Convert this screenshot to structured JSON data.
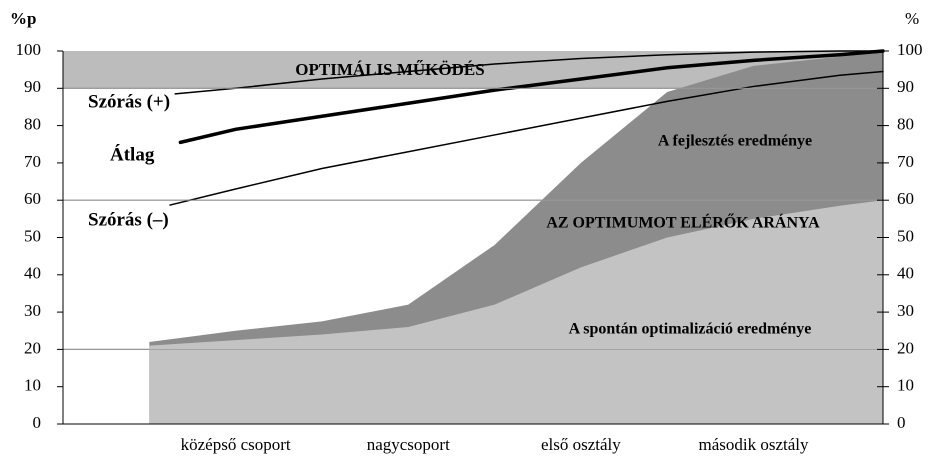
{
  "chart_data": {
    "type": "area",
    "ylabel": "%p",
    "y2label": "%",
    "xlim": [
      0,
      4.75
    ],
    "xticks": [
      {
        "value": 1,
        "label": "középső csoport"
      },
      {
        "value": 2,
        "label": "nagycsoport"
      },
      {
        "value": 3,
        "label": "első  osztály"
      },
      {
        "value": 4,
        "label": "második osztály"
      }
    ],
    "ylim": [
      0,
      100
    ],
    "yticks": [
      0,
      10,
      20,
      30,
      40,
      50,
      60,
      70,
      80,
      90,
      100
    ],
    "y2lim": [
      0,
      100
    ],
    "y2ticks": [
      0,
      10,
      20,
      30,
      40,
      50,
      60,
      70,
      80,
      90,
      100
    ],
    "gridlines": [
      20,
      60,
      90
    ],
    "band": {
      "label": "OPTIMÁLIS  MŰKÖDÉS",
      "range": [
        90,
        100
      ],
      "color": "#bcbcbc"
    },
    "series": [
      {
        "name": "A fejlesztés eredménye",
        "kind": "area",
        "color": "#8c8c8c",
        "x": [
          0.5,
          1,
          1.5,
          2,
          2.5,
          3,
          3.5,
          4,
          4.5,
          4.75
        ],
        "values": [
          22,
          25,
          27.5,
          32,
          48,
          70,
          89,
          96,
          98.5,
          100
        ]
      },
      {
        "name": "A spontán optimalizáció eredménye",
        "kind": "area",
        "color": "#c3c3c3",
        "x": [
          0.5,
          1,
          1.5,
          2,
          2.5,
          3,
          3.5,
          4,
          4.5,
          4.75
        ],
        "values": [
          21,
          22.5,
          24,
          26,
          32,
          42,
          50,
          55,
          58.5,
          60
        ]
      },
      {
        "name": "Szórás (+)",
        "kind": "line",
        "color": "#000000",
        "width": 1.5,
        "x": [
          0.65,
          1,
          1.5,
          2,
          2.5,
          3,
          3.5,
          4,
          4.5,
          4.75
        ],
        "values": [
          88.5,
          90,
          92.5,
          94.5,
          96.5,
          98,
          99,
          99.7,
          100,
          100
        ]
      },
      {
        "name": "Átlag",
        "kind": "line",
        "color": "#000000",
        "width": 3.5,
        "x": [
          0.68,
          1,
          1.5,
          2,
          2.5,
          3,
          3.5,
          4,
          4.5,
          4.75
        ],
        "values": [
          75.5,
          79,
          82.5,
          86,
          89.5,
          92.5,
          95.5,
          97.5,
          99,
          100
        ]
      },
      {
        "name": "Szórás (–)",
        "kind": "line",
        "color": "#000000",
        "width": 1.5,
        "x": [
          0.62,
          1,
          1.5,
          2,
          2.5,
          3,
          3.5,
          4,
          4.5,
          4.75
        ],
        "values": [
          58.7,
          63,
          68.5,
          73,
          77.5,
          82,
          86.5,
          90.5,
          93.5,
          94.5
        ]
      }
    ],
    "annotations": [
      "AZ OPTIMUMOT ELÉRŐK ARÁNYA"
    ]
  }
}
